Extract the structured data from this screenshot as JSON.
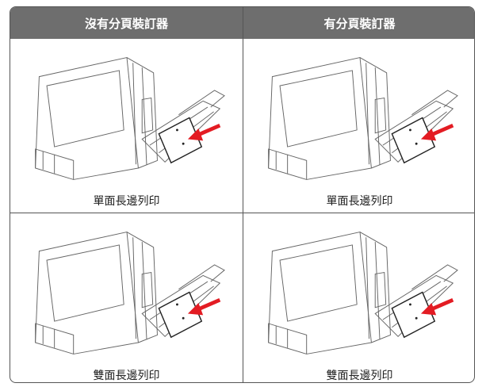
{
  "table": {
    "headers": [
      "沒有分頁裝訂器",
      "有分頁裝訂器"
    ],
    "rows": [
      [
        "單面長邊列印",
        "單面長邊列印"
      ],
      [
        "雙面長邊列印",
        "雙面長邊列印"
      ]
    ]
  }
}
